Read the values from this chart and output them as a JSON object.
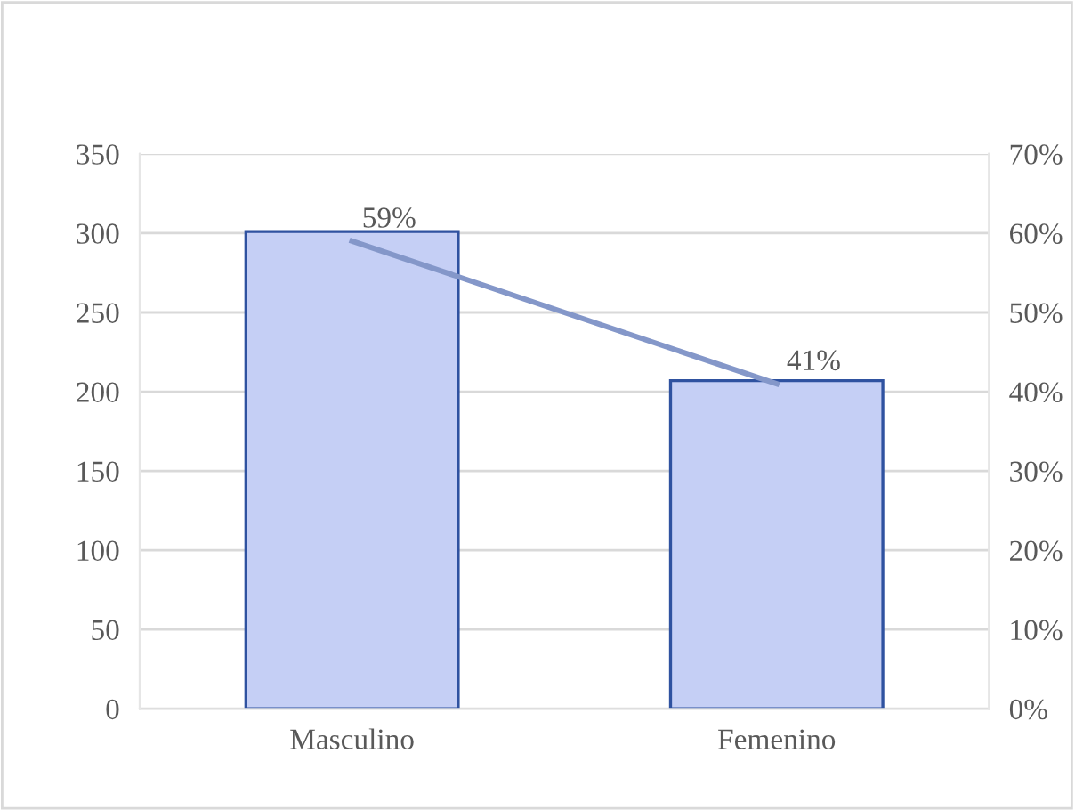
{
  "chart_data": {
    "type": "bar",
    "categories": [
      "Masculino",
      "Femenino"
    ],
    "series": [
      {
        "color": "#c5cff5",
        "values": [
          301,
          207
        ]
      },
      {
        "type": "line",
        "axis": "y2",
        "color": "#8497c9",
        "values": [
          59,
          41
        ],
        "value_labels": [
          "59%",
          "41%"
        ]
      }
    ],
    "ylim": [
      0,
      350
    ],
    "yticks": [
      0,
      50,
      100,
      150,
      200,
      250,
      300,
      350
    ],
    "y2lim": [
      0,
      70
    ],
    "y2ticks": [
      {
        "value": 0,
        "label": "0%"
      },
      {
        "value": 10,
        "label": "10%"
      },
      {
        "value": 20,
        "label": "20%"
      },
      {
        "value": 30,
        "label": "30%"
      },
      {
        "value": 40,
        "label": "40%"
      },
      {
        "value": 50,
        "label": "50%"
      },
      {
        "value": 60,
        "label": "60%"
      },
      {
        "value": 70,
        "label": "70%"
      }
    ],
    "grid": "y",
    "marker": "none"
  }
}
